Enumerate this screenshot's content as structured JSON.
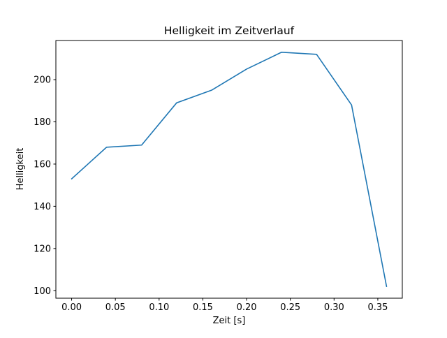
{
  "figure": {
    "background": "#ffffff"
  },
  "chart_data": {
    "type": "line",
    "title": "Helligkeit im Zeitverlauf",
    "xlabel": "Zeit [s]",
    "ylabel": "Helligkeit",
    "x": [
      0.0,
      0.04,
      0.08,
      0.12,
      0.16,
      0.2,
      0.24,
      0.28,
      0.32,
      0.36
    ],
    "y": [
      153,
      168,
      169,
      189,
      195,
      205,
      213,
      212,
      188,
      102
    ],
    "xlim": [
      -0.018,
      0.378
    ],
    "ylim": [
      96.45,
      218.55
    ],
    "xticks": [
      0.0,
      0.05,
      0.1,
      0.15,
      0.2,
      0.25,
      0.3,
      0.35
    ],
    "xtick_labels": [
      "0.00",
      "0.05",
      "0.10",
      "0.15",
      "0.20",
      "0.25",
      "0.30",
      "0.35"
    ],
    "yticks": [
      100,
      120,
      140,
      160,
      180,
      200
    ],
    "ytick_labels": [
      "100",
      "120",
      "140",
      "160",
      "180",
      "200"
    ],
    "line_color": "#1f77b4",
    "axis_color": "#000000",
    "grid": false,
    "legend": null
  }
}
